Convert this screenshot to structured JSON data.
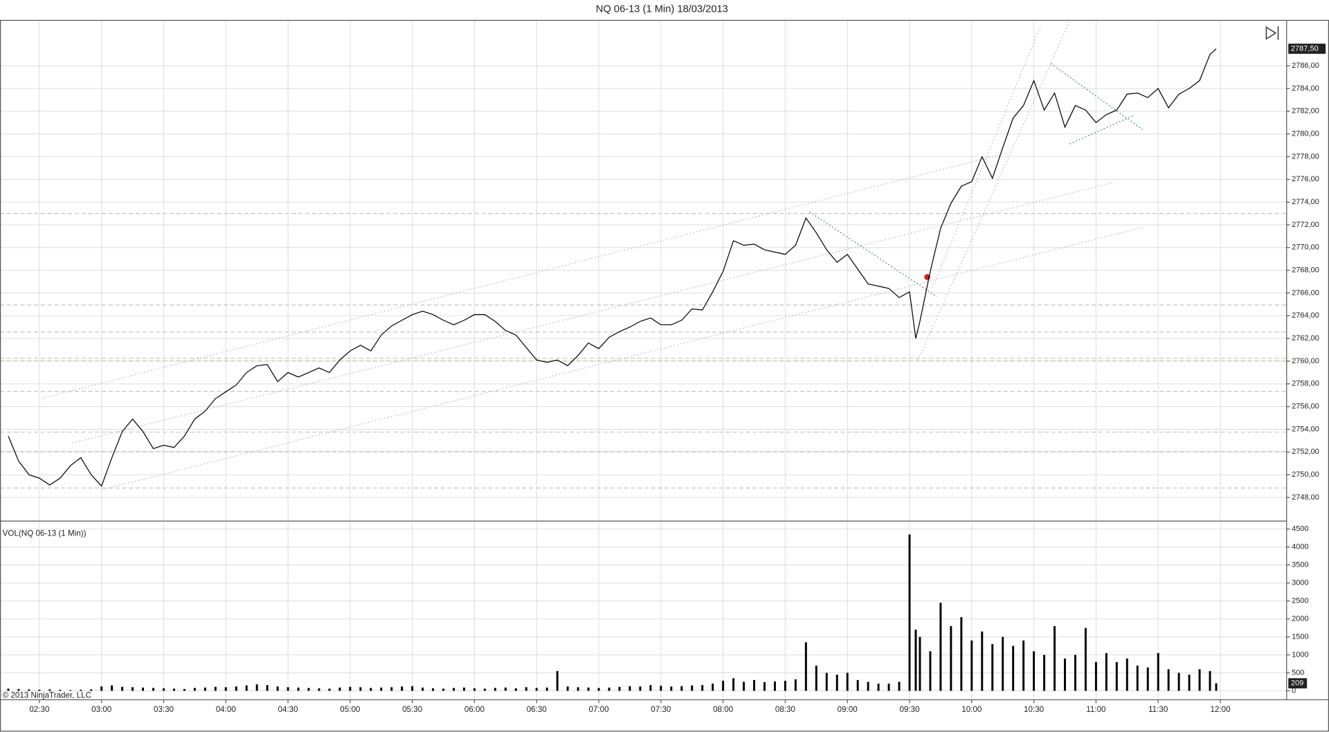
{
  "chart_data": [
    {
      "type": "line",
      "title": "NQ 06-13 (1 Min)  18/03/2013",
      "last_label": "2787,50",
      "footer": "© 2013 NinjaTrader, LLC",
      "x": [
        "02:15",
        "02:20",
        "02:25",
        "02:30",
        "02:35",
        "02:40",
        "02:45",
        "02:50",
        "02:55",
        "03:00",
        "03:05",
        "03:10",
        "03:15",
        "03:20",
        "03:25",
        "03:30",
        "03:35",
        "03:40",
        "03:45",
        "03:50",
        "03:55",
        "04:00",
        "04:05",
        "04:10",
        "04:15",
        "04:20",
        "04:25",
        "04:30",
        "04:35",
        "04:40",
        "04:45",
        "04:50",
        "04:55",
        "05:00",
        "05:05",
        "05:10",
        "05:15",
        "05:20",
        "05:25",
        "05:30",
        "05:35",
        "05:40",
        "05:45",
        "05:50",
        "05:55",
        "06:00",
        "06:05",
        "06:10",
        "06:15",
        "06:20",
        "06:25",
        "06:30",
        "06:35",
        "06:40",
        "06:45",
        "06:50",
        "06:55",
        "07:00",
        "07:05",
        "07:10",
        "07:15",
        "07:20",
        "07:25",
        "07:30",
        "07:35",
        "07:40",
        "07:45",
        "07:50",
        "07:55",
        "08:00",
        "08:05",
        "08:10",
        "08:15",
        "08:20",
        "08:25",
        "08:30",
        "08:35",
        "08:40",
        "08:45",
        "08:50",
        "08:55",
        "09:00",
        "09:05",
        "09:10",
        "09:15",
        "09:20",
        "09:25",
        "09:30",
        "09:33",
        "09:35",
        "09:40",
        "09:45",
        "09:50",
        "09:55",
        "10:00",
        "10:05",
        "10:10",
        "10:15",
        "10:20",
        "10:25",
        "10:30",
        "10:35",
        "10:40",
        "10:45",
        "10:50",
        "10:55",
        "11:00",
        "11:05",
        "11:10",
        "11:15",
        "11:20",
        "11:25",
        "11:30",
        "11:35",
        "11:40",
        "11:45",
        "11:50",
        "11:55",
        "11:58"
      ],
      "series": [
        {
          "name": "NQ 06-13 (1 Min)",
          "color": "#000000",
          "values": [
            2753.4,
            2751.2,
            2750.0,
            2749.7,
            2749.1,
            2749.7,
            2750.8,
            2751.5,
            2750.0,
            2749.0,
            2751.5,
            2753.8,
            2754.9,
            2753.8,
            2752.3,
            2752.6,
            2752.4,
            2753.4,
            2754.9,
            2755.6,
            2756.7,
            2757.3,
            2757.9,
            2759.0,
            2759.6,
            2759.7,
            2758.2,
            2759.0,
            2758.6,
            2759.0,
            2759.4,
            2759.0,
            2760.1,
            2760.9,
            2761.4,
            2760.9,
            2762.3,
            2763.1,
            2763.6,
            2764.1,
            2764.4,
            2764.1,
            2763.6,
            2763.2,
            2763.6,
            2764.1,
            2764.1,
            2763.5,
            2762.7,
            2762.3,
            2761.2,
            2760.1,
            2759.9,
            2760.1,
            2759.6,
            2760.5,
            2761.6,
            2761.1,
            2762.1,
            2762.6,
            2763.0,
            2763.5,
            2763.8,
            2763.2,
            2763.2,
            2763.6,
            2764.6,
            2764.5,
            2766.1,
            2767.9,
            2770.6,
            2770.2,
            2770.3,
            2769.8,
            2769.6,
            2769.4,
            2770.2,
            2772.6,
            2771.3,
            2769.8,
            2768.7,
            2769.4,
            2768.1,
            2766.8,
            2766.6,
            2766.4,
            2765.6,
            2766.1,
            2762.0,
            2763.5,
            2767.9,
            2771.7,
            2773.9,
            2775.4,
            2775.8,
            2778.0,
            2776.1,
            2778.8,
            2781.4,
            2782.5,
            2784.7,
            2782.1,
            2783.6,
            2780.6,
            2782.5,
            2782.1,
            2781.0,
            2781.7,
            2782.1,
            2783.5,
            2783.6,
            2783.2,
            2784.0,
            2782.3,
            2783.5,
            2784.0,
            2784.7,
            2787.0,
            2787.5
          ]
        }
      ],
      "xlim": [
        "02:11",
        "12:32"
      ],
      "xticks": [
        "02:30",
        "03:00",
        "03:30",
        "04:00",
        "04:30",
        "05:00",
        "05:30",
        "06:00",
        "06:30",
        "07:00",
        "07:30",
        "08:00",
        "08:30",
        "09:00",
        "09:30",
        "10:00",
        "10:30",
        "11:00",
        "11:30",
        "12:00"
      ],
      "ylim": [
        2746,
        2790
      ],
      "yticks": [
        {
          "value": 2748,
          "label": "2748,00"
        },
        {
          "value": 2750,
          "label": "2750,00"
        },
        {
          "value": 2752,
          "label": "2752,00"
        },
        {
          "value": 2754,
          "label": "2754,00"
        },
        {
          "value": 2756,
          "label": "2756,00"
        },
        {
          "value": 2758,
          "label": "2758,00"
        },
        {
          "value": 2760,
          "label": "2760,00"
        },
        {
          "value": 2762,
          "label": "2762,00"
        },
        {
          "value": 2764,
          "label": "2764,00"
        },
        {
          "value": 2766,
          "label": "2766,00"
        },
        {
          "value": 2768,
          "label": "2768,00"
        },
        {
          "value": 2770,
          "label": "2770,00"
        },
        {
          "value": 2772,
          "label": "2772,00"
        },
        {
          "value": 2774,
          "label": "2774,00"
        },
        {
          "value": 2776,
          "label": "2776,00"
        },
        {
          "value": 2778,
          "label": "2778,00"
        },
        {
          "value": 2780,
          "label": "2780,00"
        },
        {
          "value": 2782,
          "label": "2782,00"
        },
        {
          "value": 2784,
          "label": "2784,00"
        },
        {
          "value": 2786,
          "label": "2786,00"
        }
      ],
      "grid": true
    },
    {
      "type": "bar",
      "title": "VOL(NQ 06-13 (1 Min))",
      "last_label": "209",
      "color": "#000000",
      "x": [
        "02:15",
        "02:20",
        "02:25",
        "02:30",
        "02:35",
        "02:40",
        "02:45",
        "02:50",
        "02:55",
        "03:00",
        "03:05",
        "03:10",
        "03:15",
        "03:20",
        "03:25",
        "03:30",
        "03:35",
        "03:40",
        "03:45",
        "03:50",
        "03:55",
        "04:00",
        "04:05",
        "04:10",
        "04:15",
        "04:20",
        "04:25",
        "04:30",
        "04:35",
        "04:40",
        "04:45",
        "04:50",
        "04:55",
        "05:00",
        "05:05",
        "05:10",
        "05:15",
        "05:20",
        "05:25",
        "05:30",
        "05:35",
        "05:40",
        "05:45",
        "05:50",
        "05:55",
        "06:00",
        "06:05",
        "06:10",
        "06:15",
        "06:20",
        "06:25",
        "06:30",
        "06:35",
        "06:40",
        "06:45",
        "06:50",
        "06:55",
        "07:00",
        "07:05",
        "07:10",
        "07:15",
        "07:20",
        "07:25",
        "07:30",
        "07:35",
        "07:40",
        "07:45",
        "07:50",
        "07:55",
        "08:00",
        "08:05",
        "08:10",
        "08:15",
        "08:20",
        "08:25",
        "08:30",
        "08:35",
        "08:40",
        "08:45",
        "08:50",
        "08:55",
        "09:00",
        "09:05",
        "09:10",
        "09:15",
        "09:20",
        "09:25",
        "09:30",
        "09:33",
        "09:35",
        "09:40",
        "09:45",
        "09:50",
        "09:55",
        "10:00",
        "10:05",
        "10:10",
        "10:15",
        "10:20",
        "10:25",
        "10:30",
        "10:35",
        "10:40",
        "10:45",
        "10:50",
        "10:55",
        "11:00",
        "11:05",
        "11:10",
        "11:15",
        "11:20",
        "11:25",
        "11:30",
        "11:35",
        "11:40",
        "11:45",
        "11:50",
        "11:55",
        "11:58"
      ],
      "values": [
        60,
        50,
        40,
        30,
        40,
        30,
        20,
        30,
        40,
        120,
        150,
        110,
        100,
        90,
        80,
        70,
        60,
        50,
        80,
        90,
        110,
        100,
        120,
        150,
        180,
        160,
        120,
        100,
        90,
        80,
        70,
        60,
        90,
        110,
        100,
        80,
        90,
        100,
        120,
        130,
        90,
        70,
        60,
        80,
        90,
        70,
        60,
        80,
        90,
        70,
        100,
        80,
        90,
        550,
        120,
        100,
        90,
        80,
        90,
        110,
        130,
        120,
        160,
        140,
        120,
        130,
        150,
        160,
        200,
        280,
        350,
        250,
        300,
        240,
        260,
        280,
        320,
        1350,
        700,
        500,
        450,
        500,
        300,
        250,
        200,
        200,
        250,
        4350,
        1700,
        1500,
        1100,
        2450,
        1800,
        2050,
        1400,
        1650,
        1300,
        1500,
        1250,
        1400,
        1100,
        1000,
        1800,
        900,
        1000,
        1750,
        800,
        1050,
        800,
        900,
        700,
        650,
        1050,
        600,
        500,
        450,
        600,
        550,
        209
      ],
      "xlim": [
        "02:11",
        "12:32"
      ],
      "ylim": [
        -250,
        4700
      ],
      "yticks": [
        0,
        500,
        1000,
        1500,
        2000,
        2500,
        3000,
        3500,
        4000,
        4500
      ],
      "grid": true
    }
  ]
}
